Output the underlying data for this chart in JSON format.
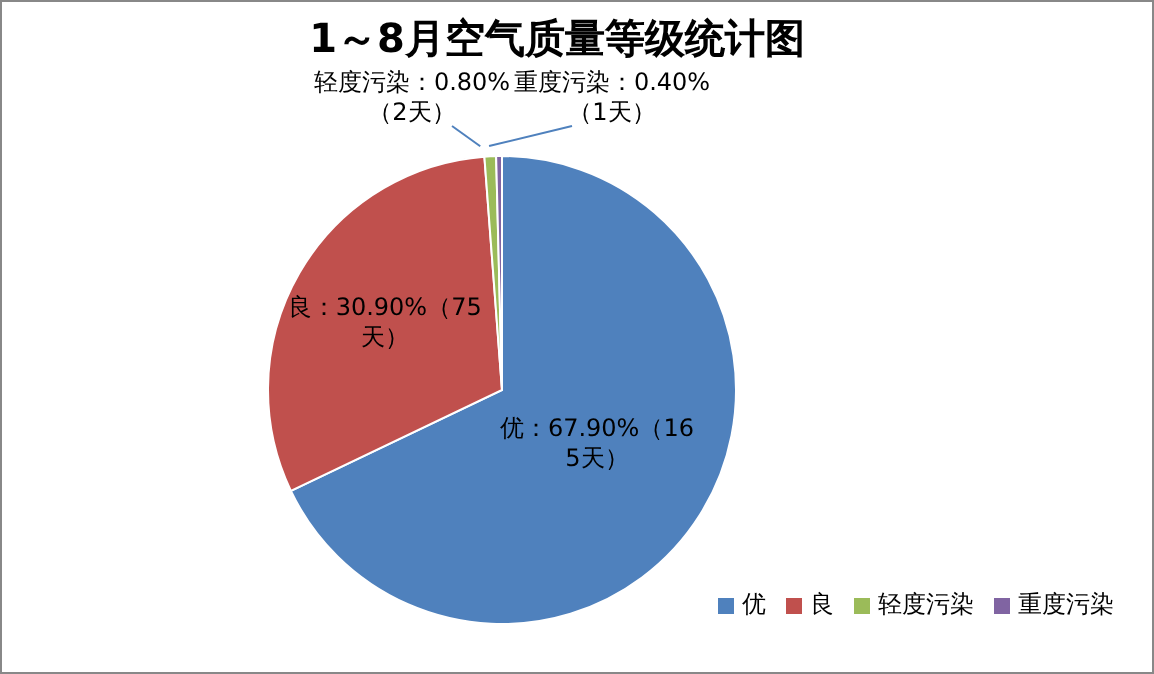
{
  "chart_data": {
    "type": "pie",
    "title": "1～8月空气质量等级统计图",
    "categories": [
      "优",
      "良",
      "轻度污染",
      "重度污染"
    ],
    "values": [
      67.9,
      30.9,
      0.8,
      0.4
    ],
    "colors": [
      "#4f81bd",
      "#c0504d",
      "#9bbb59",
      "#8064a2"
    ],
    "value_labels": [
      "优：67.90%（165天）",
      "良：30.90%（75天）",
      "轻度污染：0.80%（2天）",
      "重度污染：0.40%（1天）"
    ],
    "legend": "bottom right"
  }
}
